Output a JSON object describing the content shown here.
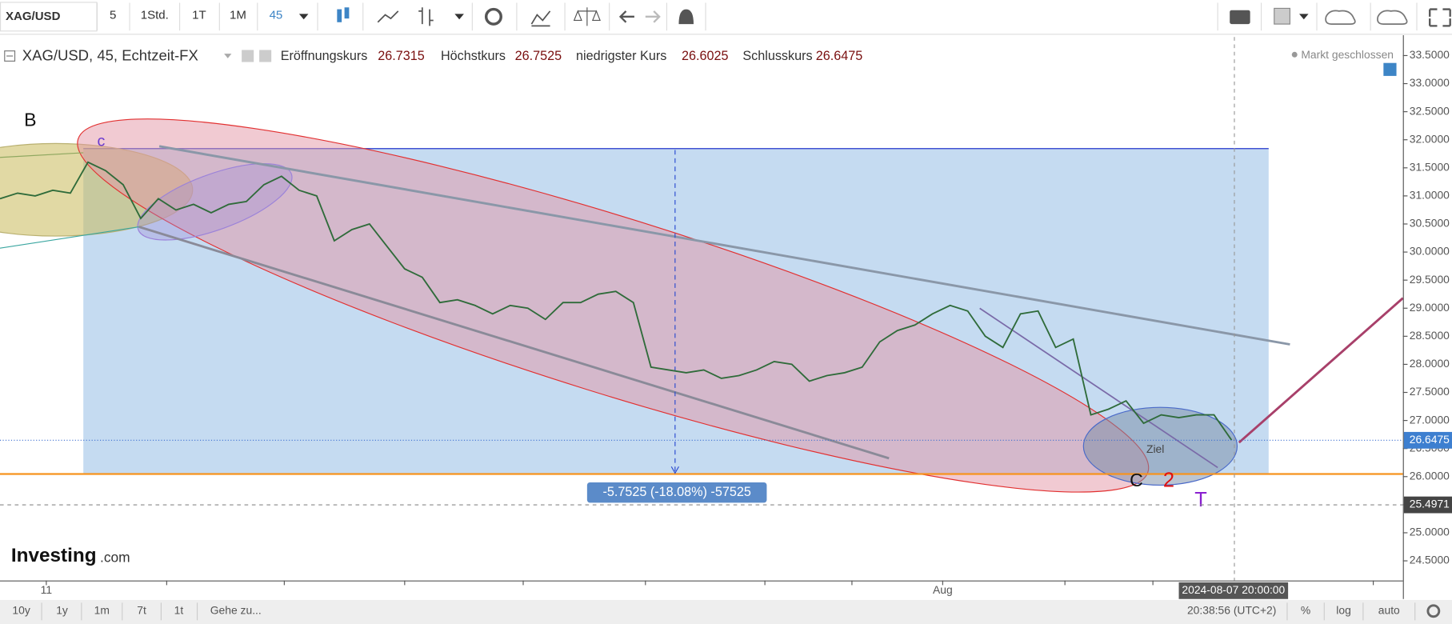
{
  "toolbar": {
    "symbol": "XAG/USD",
    "intervals": [
      "5",
      "1Std.",
      "1T",
      "1M",
      "45"
    ]
  },
  "legend": {
    "instrument": "XAG/USD, 45, Echtzeit-FX",
    "open_label": "Eröffnungskurs",
    "open": 26.7315,
    "high_label": "Höchstkurs",
    "high": 26.7525,
    "low_label": "niedrigster Kurs",
    "low": 26.6025,
    "close_label": "Schlusskurs",
    "close": 26.6475
  },
  "status": "Markt geschlossen",
  "chart_data": {
    "type": "line",
    "values": [
      30.95,
      31.05,
      31.0,
      31.1,
      31.05,
      31.6,
      31.45,
      31.2,
      30.6,
      30.95,
      30.75,
      30.85,
      30.7,
      30.85,
      30.9,
      31.2,
      31.35,
      31.1,
      31.0,
      30.2,
      30.4,
      30.5,
      30.1,
      29.7,
      29.55,
      29.1,
      29.15,
      29.05,
      28.9,
      29.05,
      29.0,
      28.8,
      29.1,
      29.1,
      29.25,
      29.3,
      29.1,
      27.95,
      27.9,
      27.85,
      27.9,
      27.75,
      27.8,
      27.9,
      28.05,
      28.0,
      27.7,
      27.8,
      27.85,
      27.95,
      28.4,
      28.6,
      28.7,
      28.9,
      29.05,
      28.95,
      28.5,
      28.3,
      28.9,
      28.95,
      28.3,
      28.45,
      27.1,
      27.2,
      27.35,
      26.95,
      27.1,
      27.05,
      27.1,
      27.1,
      26.65
    ],
    "ylim": [
      24.15,
      33.83
    ],
    "yticks": [
      {
        "value": 33.5,
        "label": "33.5000"
      },
      {
        "value": 33,
        "label": "33.0000"
      },
      {
        "value": 32.5,
        "label": "32.5000"
      },
      {
        "value": 32,
        "label": "32.0000"
      },
      {
        "value": 31.5,
        "label": "31.5000"
      },
      {
        "value": 31,
        "label": "31.0000"
      },
      {
        "value": 30.5,
        "label": "30.5000"
      },
      {
        "value": 30,
        "label": "30.0000"
      },
      {
        "value": 29.5,
        "label": "29.5000"
      },
      {
        "value": 29,
        "label": "29.0000"
      },
      {
        "value": 28.5,
        "label": "28.5000"
      },
      {
        "value": 28,
        "label": "28.0000"
      },
      {
        "value": 27.5,
        "label": "27.5000"
      },
      {
        "value": 27,
        "label": "27.0000"
      },
      {
        "value": 26.5,
        "label": "26.5000"
      },
      {
        "value": 26,
        "label": "26.0000"
      },
      {
        "value": 25.5,
        "label": "25.5000"
      },
      {
        "value": 25,
        "label": "25.0000"
      },
      {
        "value": 24.5,
        "label": "24.5000"
      }
    ],
    "last_price": 26.6475,
    "marker_price": 25.4971,
    "measure_label": "-5.7525 (-18.08%) -57525",
    "annotations": [
      "B",
      "c",
      "C",
      "2",
      "T",
      "Ziel"
    ],
    "xlabels": [
      "11",
      "Aug"
    ],
    "crosshair_time": "2024-08-07 20:00:00"
  },
  "logo": {
    "brand": "Investing",
    "suffix": ".com"
  },
  "bottom_bar": {
    "ranges": [
      "10y",
      "1y",
      "1m",
      "7t",
      "1t"
    ],
    "goto": "Gehe zu...",
    "time": "20:38:56 (UTC+2)",
    "options": [
      "%",
      "log",
      "auto"
    ]
  }
}
